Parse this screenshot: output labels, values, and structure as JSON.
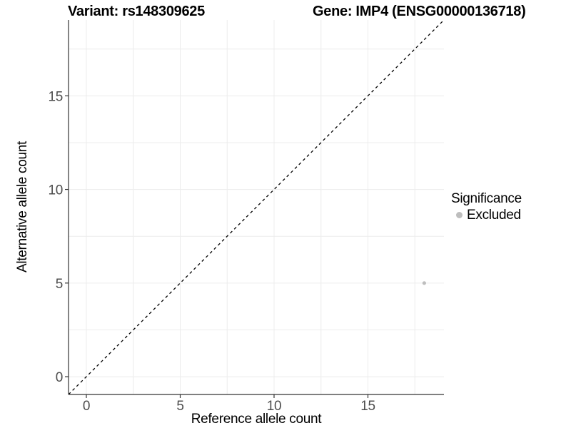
{
  "header": {
    "variant_title": "Variant: rs148309625",
    "gene_title": "Gene: IMP4 (ENSG00000136718)"
  },
  "legend": {
    "title": "Significance",
    "items": [
      {
        "label": "Excluded",
        "color": "#bebebe",
        "marker": "circle-icon"
      }
    ]
  },
  "colors": {
    "background": "#ffffff",
    "grid_major": "#ececec",
    "grid_minor": "#ececec",
    "axis_line": "#333333",
    "tick_mark": "#333333",
    "tick_label": "#4d4d4d",
    "reference_line": "#000000",
    "point": "#bebebe"
  },
  "chart_data": {
    "type": "scatter",
    "title": "Variant: rs148309625    Gene: IMP4 (ENSG00000136718)",
    "xlabel": "Reference allele count",
    "ylabel": "Alternative allele count",
    "xlim": [
      -0.95,
      19.05
    ],
    "ylim": [
      -0.95,
      19.05
    ],
    "x_ticks": [
      0,
      5,
      10,
      15
    ],
    "y_ticks": [
      0,
      5,
      10,
      15
    ],
    "x_minor_ticks": [
      2.5,
      7.5,
      12.5,
      17.5
    ],
    "y_minor_ticks": [
      2.5,
      7.5,
      12.5,
      17.5
    ],
    "grid": true,
    "legend_position": "right",
    "legend_title": "Significance",
    "series": [
      {
        "name": "Excluded",
        "color": "#bebebe",
        "points": [
          {
            "x": 18,
            "y": 5
          }
        ]
      }
    ],
    "reference_line": {
      "kind": "identity",
      "slope": 1,
      "intercept": 0,
      "style": "dashed",
      "color": "#000000"
    }
  }
}
